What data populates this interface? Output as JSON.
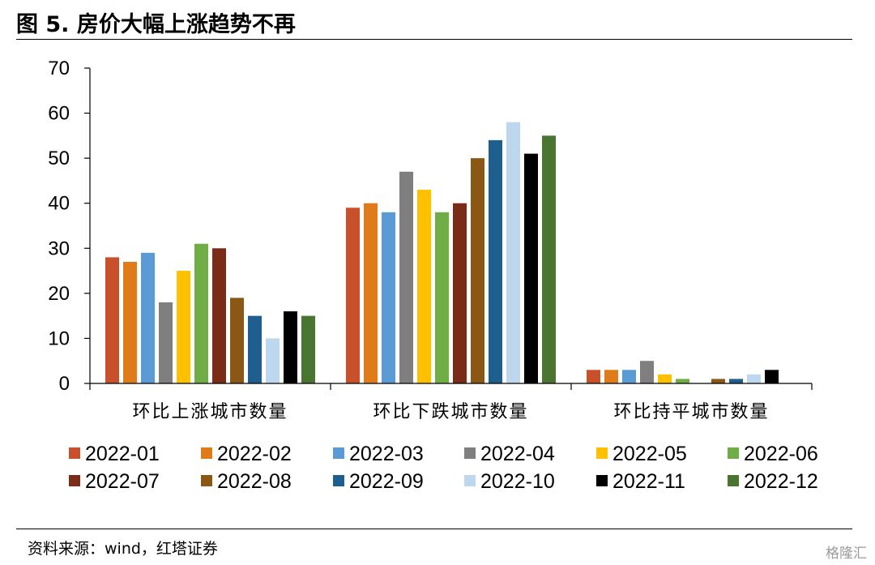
{
  "page": {
    "figure_title": "图 5. 房价大幅上涨趋势不再",
    "source_note": "资料来源：wind，红塔证券",
    "watermark": "格隆汇"
  },
  "chart_data": {
    "type": "bar",
    "title": "",
    "xlabel": "",
    "ylabel": "",
    "ylim": [
      0,
      70
    ],
    "yticks": [
      0,
      10,
      20,
      30,
      40,
      50,
      60,
      70
    ],
    "grid": false,
    "legend_position": "bottom",
    "categories": [
      "环比上涨城市数量",
      "环比下跌城市数量",
      "环比持平城市数量"
    ],
    "series": [
      {
        "name": "2022-01",
        "color": "#C8502A",
        "values": [
          28,
          39,
          3
        ]
      },
      {
        "name": "2022-02",
        "color": "#E07B1A",
        "values": [
          27,
          40,
          3
        ]
      },
      {
        "name": "2022-03",
        "color": "#5B9BD5",
        "values": [
          29,
          38,
          3
        ]
      },
      {
        "name": "2022-04",
        "color": "#7F7F7F",
        "values": [
          18,
          47,
          5
        ]
      },
      {
        "name": "2022-05",
        "color": "#FFC000",
        "values": [
          25,
          43,
          2
        ]
      },
      {
        "name": "2022-06",
        "color": "#70AD47",
        "values": [
          31,
          38,
          1
        ]
      },
      {
        "name": "2022-07",
        "color": "#7B2C17",
        "values": [
          30,
          40,
          0
        ]
      },
      {
        "name": "2022-08",
        "color": "#8B5714",
        "values": [
          19,
          50,
          1
        ]
      },
      {
        "name": "2022-09",
        "color": "#1F5F8F",
        "values": [
          15,
          54,
          1
        ]
      },
      {
        "name": "2022-10",
        "color": "#BDD7EE",
        "values": [
          10,
          58,
          2
        ]
      },
      {
        "name": "2022-11",
        "color": "#000000",
        "values": [
          16,
          51,
          3
        ]
      },
      {
        "name": "2022-12",
        "color": "#4A7530",
        "values": [
          15,
          55,
          0
        ]
      }
    ]
  }
}
